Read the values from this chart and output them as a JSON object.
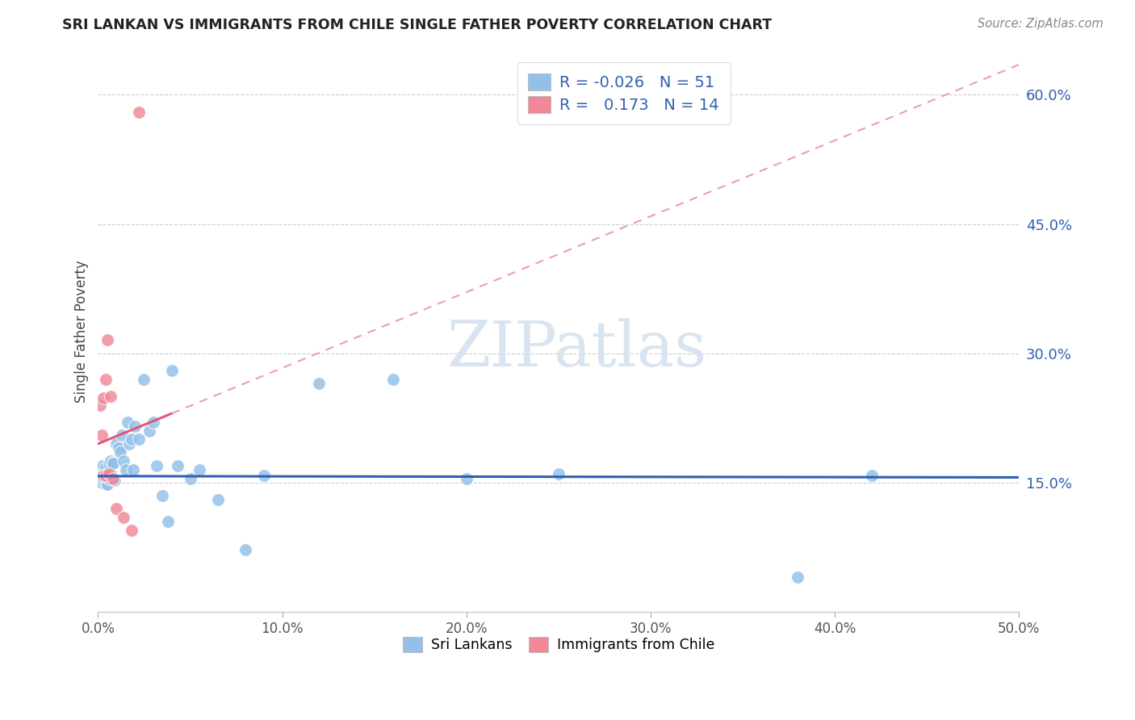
{
  "title": "SRI LANKAN VS IMMIGRANTS FROM CHILE SINGLE FATHER POVERTY CORRELATION CHART",
  "source": "Source: ZipAtlas.com",
  "ylabel": "Single Father Poverty",
  "xlim": [
    0,
    0.5
  ],
  "ylim": [
    0,
    0.65
  ],
  "xticks": [
    0.0,
    0.1,
    0.2,
    0.3,
    0.4,
    0.5
  ],
  "yticks": [
    0.15,
    0.3,
    0.45,
    0.6
  ],
  "ytick_labels": [
    "15.0%",
    "30.0%",
    "45.0%",
    "60.0%"
  ],
  "xtick_labels": [
    "0.0%",
    "10.0%",
    "20.0%",
    "30.0%",
    "40.0%",
    "50.0%"
  ],
  "sri_lankans_x": [
    0.001,
    0.001,
    0.002,
    0.002,
    0.002,
    0.003,
    0.003,
    0.003,
    0.004,
    0.004,
    0.004,
    0.005,
    0.005,
    0.006,
    0.006,
    0.007,
    0.007,
    0.008,
    0.008,
    0.009,
    0.01,
    0.011,
    0.012,
    0.013,
    0.014,
    0.015,
    0.016,
    0.017,
    0.018,
    0.019,
    0.02,
    0.022,
    0.025,
    0.028,
    0.03,
    0.032,
    0.035,
    0.038,
    0.04,
    0.043,
    0.05,
    0.055,
    0.065,
    0.08,
    0.09,
    0.12,
    0.16,
    0.2,
    0.25,
    0.38,
    0.42
  ],
  "sri_lankans_y": [
    0.155,
    0.165,
    0.16,
    0.15,
    0.17,
    0.155,
    0.17,
    0.16,
    0.148,
    0.158,
    0.168,
    0.148,
    0.158,
    0.155,
    0.172,
    0.16,
    0.175,
    0.173,
    0.172,
    0.153,
    0.195,
    0.19,
    0.185,
    0.205,
    0.175,
    0.165,
    0.22,
    0.195,
    0.2,
    0.165,
    0.215,
    0.2,
    0.27,
    0.21,
    0.22,
    0.17,
    0.135,
    0.105,
    0.28,
    0.17,
    0.155,
    0.165,
    0.13,
    0.072,
    0.158,
    0.265,
    0.27,
    0.155,
    0.16,
    0.04,
    0.158
  ],
  "chile_x": [
    0.001,
    0.002,
    0.003,
    0.003,
    0.004,
    0.004,
    0.005,
    0.006,
    0.007,
    0.008,
    0.01,
    0.014,
    0.018,
    0.022
  ],
  "chile_y": [
    0.24,
    0.205,
    0.158,
    0.248,
    0.158,
    0.27,
    0.316,
    0.16,
    0.25,
    0.155,
    0.12,
    0.11,
    0.095,
    0.58
  ],
  "sri_lankans_color": "#92c0e8",
  "chile_color": "#f08898",
  "sri_lankans_line_color": "#3060b0",
  "chile_solid_color": "#e05878",
  "chile_dashed_color": "#e8a0b0",
  "background_color": "#ffffff",
  "watermark_text": "ZIPatlas",
  "watermark_color": "#d8e4f0",
  "legend_r1": "R = -0.026",
  "legend_n1": "N = 51",
  "legend_r2": "R =   0.173",
  "legend_n2": "N = 14",
  "sl_line_intercept": 0.1575,
  "sl_line_slope": -0.003,
  "chile_line_intercept": 0.195,
  "chile_line_slope": 0.88
}
